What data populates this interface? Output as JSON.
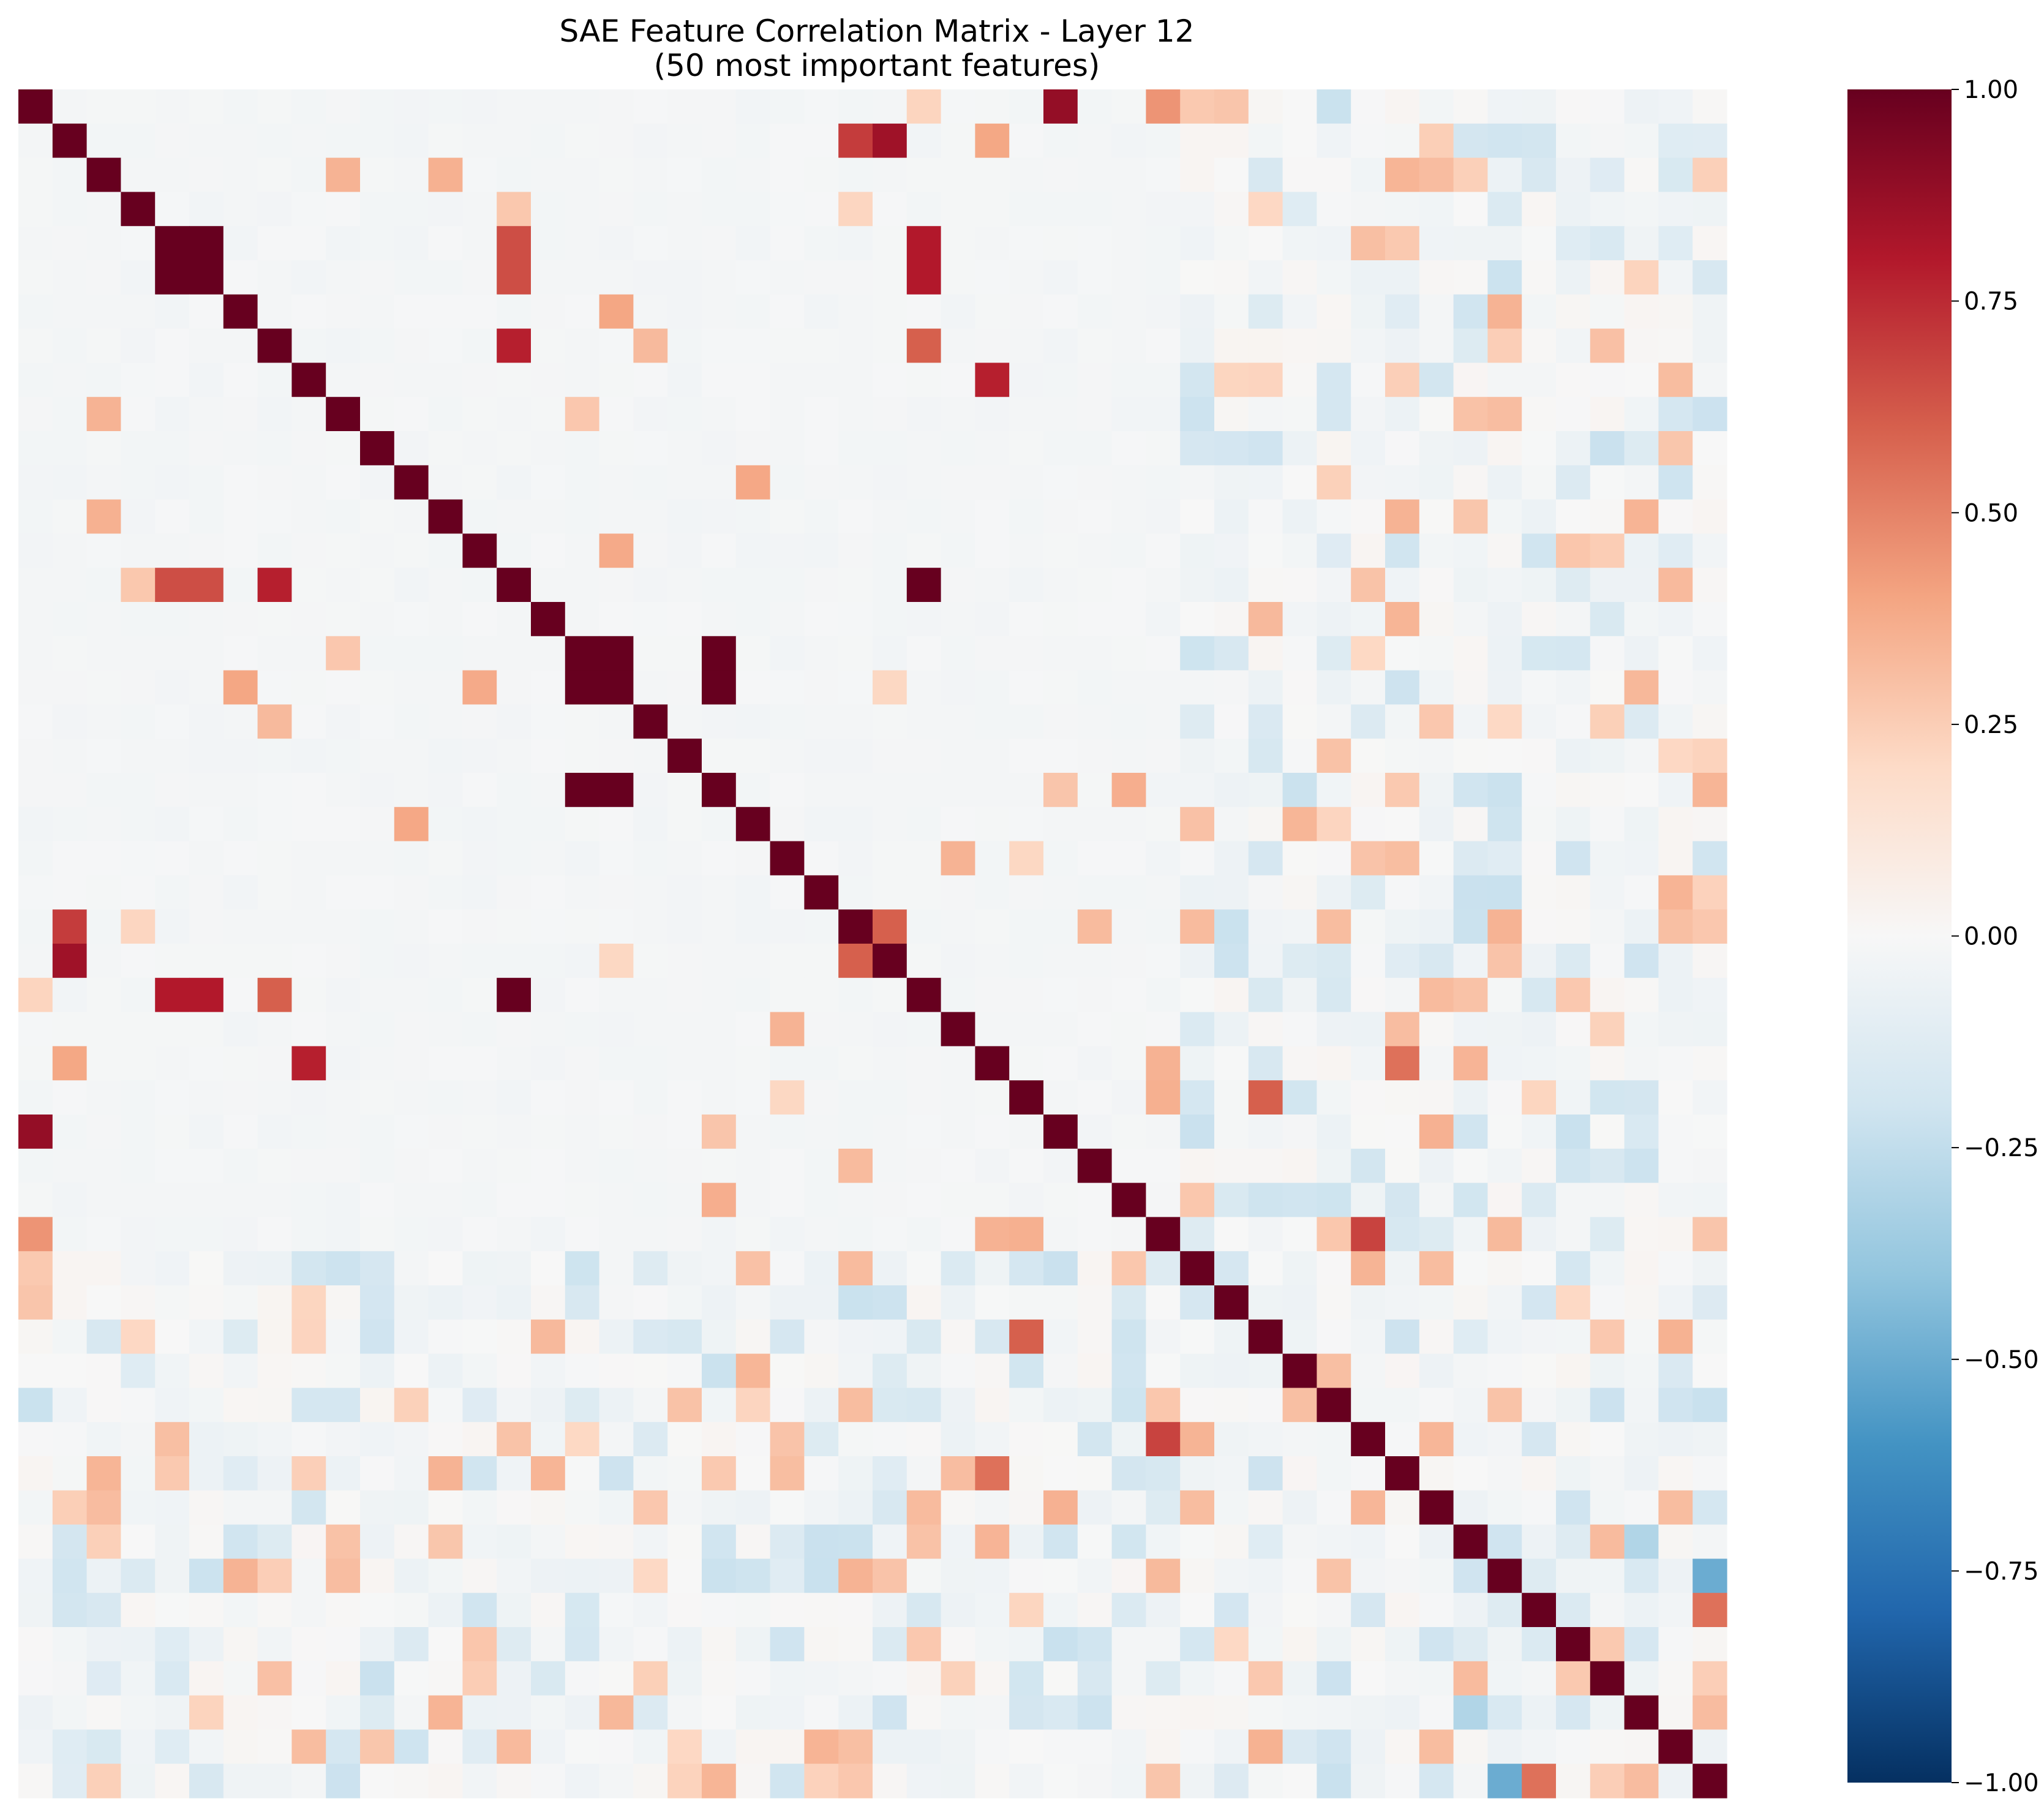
{
  "chart_data": {
    "type": "heatmap",
    "title": "SAE Feature Correlation Matrix - Layer 12",
    "subtitle": "(50 most important features)",
    "xlabel": "",
    "ylabel": "",
    "n": 50,
    "colormap": "RdBu_r",
    "vmin": -1.0,
    "vmax": 1.0,
    "colorbar_ticks": [
      "1.00",
      "0.75",
      "0.50",
      "0.25",
      "0.00",
      "−0.25",
      "−0.50",
      "−0.75",
      "−1.00"
    ],
    "colorbar_tick_values": [
      1.0,
      0.75,
      0.5,
      0.25,
      0.0,
      -0.25,
      -0.5,
      -0.75,
      -1.0
    ],
    "gridlines": false,
    "notable_correlations": [
      {
        "i": 0,
        "j": 30,
        "value": 0.88
      },
      {
        "i": 0,
        "j": 33,
        "value": 0.45
      },
      {
        "i": 0,
        "j": 35,
        "value": 0.28
      },
      {
        "i": 1,
        "j": 24,
        "value": 0.7
      },
      {
        "i": 1,
        "j": 25,
        "value": 0.85
      },
      {
        "i": 4,
        "j": 5,
        "value": 1.0
      },
      {
        "i": 4,
        "j": 14,
        "value": 0.65
      },
      {
        "i": 4,
        "j": 26,
        "value": 0.8
      },
      {
        "i": 5,
        "j": 14,
        "value": 0.65
      },
      {
        "i": 5,
        "j": 26,
        "value": 0.8
      },
      {
        "i": 7,
        "j": 14,
        "value": 0.78
      },
      {
        "i": 7,
        "j": 26,
        "value": 0.6
      },
      {
        "i": 8,
        "j": 28,
        "value": 0.78
      },
      {
        "i": 14,
        "j": 26,
        "value": 1.0
      },
      {
        "i": 16,
        "j": 17,
        "value": 1.0
      },
      {
        "i": 16,
        "j": 20,
        "value": 1.0
      },
      {
        "i": 17,
        "j": 20,
        "value": 1.0
      },
      {
        "i": 24,
        "j": 25,
        "value": 0.6
      },
      {
        "i": 28,
        "j": 40,
        "value": 0.55
      },
      {
        "i": 29,
        "j": 36,
        "value": 0.6
      },
      {
        "i": 33,
        "j": 39,
        "value": 0.68
      },
      {
        "i": 42,
        "j": 47,
        "value": -0.3
      },
      {
        "i": 43,
        "j": 49,
        "value": -0.5
      },
      {
        "i": 44,
        "j": 49,
        "value": 0.55
      }
    ]
  }
}
